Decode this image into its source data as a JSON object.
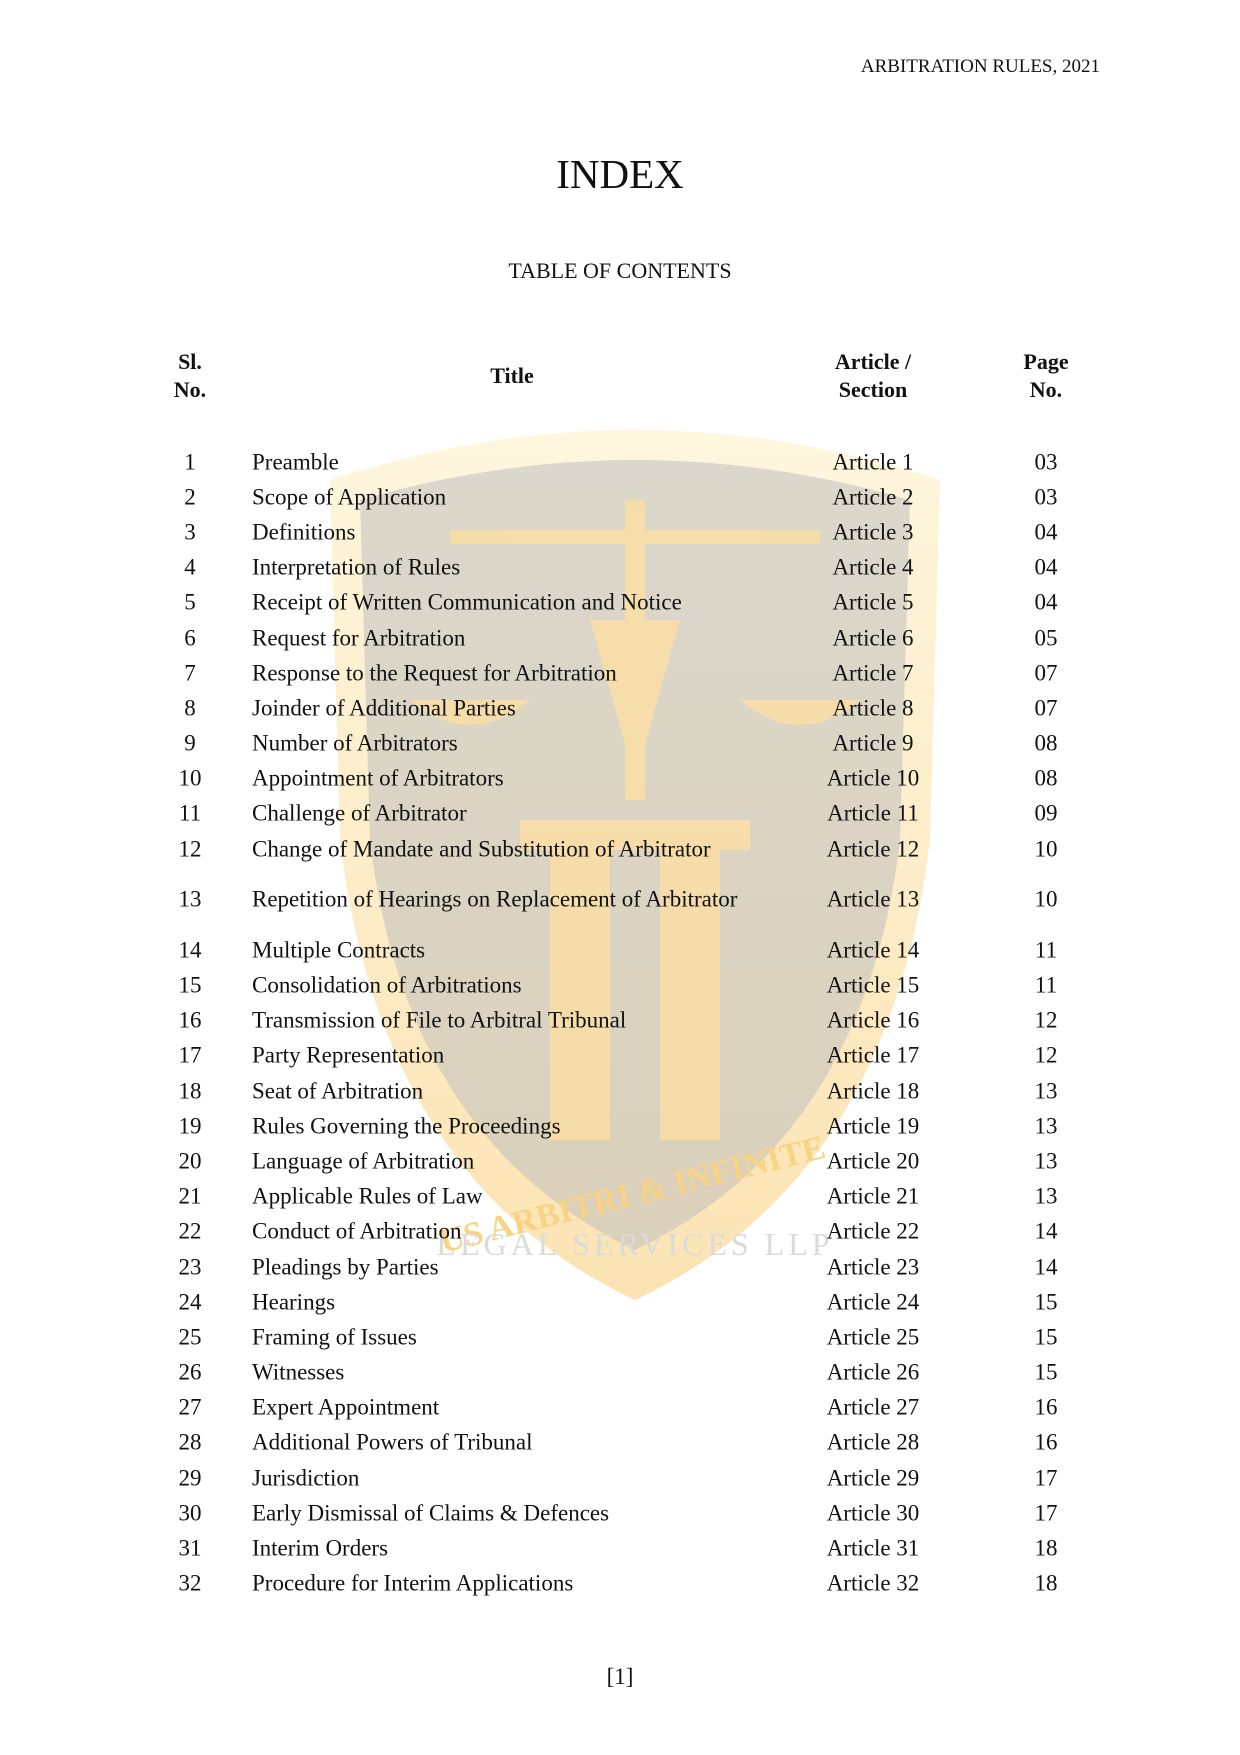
{
  "header": {
    "running_title": "ARBITRATION RULES, 2021"
  },
  "page_title": "INDEX",
  "subtitle": "TABLE OF CONTENTS",
  "columns": {
    "sl_line1": "Sl.",
    "sl_line2": "No.",
    "title": "Title",
    "article_line1": "Article /",
    "article_line2": "Section",
    "page_line1": "Page",
    "page_line2": "No."
  },
  "watermark": {
    "text_top": "US ARBITRI & INFINITE",
    "text_bottom": "LEGAL SERVICES LLP",
    "colors": {
      "shield": "#6b6b6b",
      "gold": "#f2b01e"
    }
  },
  "rows": [
    {
      "no": "1",
      "title": "Preamble",
      "article": "Article 1",
      "page": "03"
    },
    {
      "no": "2",
      "title": "Scope of Application",
      "article": "Article 2",
      "page": "03"
    },
    {
      "no": "3",
      "title": "Definitions",
      "article": "Article 3",
      "page": "04"
    },
    {
      "no": "4",
      "title": "Interpretation of Rules",
      "article": "Article 4",
      "page": "04"
    },
    {
      "no": "5",
      "title": "Receipt of Written Communication and Notice",
      "article": "Article 5",
      "page": "04"
    },
    {
      "no": "6",
      "title": "Request for Arbitration",
      "article": "Article 6",
      "page": "05"
    },
    {
      "no": "7",
      "title": "Response to the Request for Arbitration",
      "article": "Article 7",
      "page": "07"
    },
    {
      "no": "8",
      "title": "Joinder of Additional Parties",
      "article": "Article 8",
      "page": "07"
    },
    {
      "no": "9",
      "title": "Number of Arbitrators",
      "article": "Article 9",
      "page": "08"
    },
    {
      "no": "10",
      "title": "Appointment of Arbitrators",
      "article": "Article 10",
      "page": "08"
    },
    {
      "no": "11",
      "title": "Challenge of Arbitrator",
      "article": "Article 11",
      "page": "09"
    },
    {
      "no": "12",
      "title": "Change of Mandate and Substitution of Arbitrator",
      "article": "Article 12",
      "page": "10"
    },
    {
      "no": "13",
      "title": "Repetition of Hearings on Replacement of Arbitrator",
      "article": "Article 13",
      "page": "10"
    },
    {
      "no": "14",
      "title": "Multiple Contracts",
      "article": "Article 14",
      "page": "11"
    },
    {
      "no": "15",
      "title": "Consolidation of Arbitrations",
      "article": "Article 15",
      "page": "11"
    },
    {
      "no": "16",
      "title": "Transmission of File to Arbitral Tribunal",
      "article": "Article 16",
      "page": "12"
    },
    {
      "no": "17",
      "title": "Party Representation",
      "article": "Article 17",
      "page": "12"
    },
    {
      "no": "18",
      "title": "Seat of Arbitration",
      "article": "Article 18",
      "page": "13"
    },
    {
      "no": "19",
      "title": "Rules Governing the Proceedings",
      "article": "Article 19",
      "page": "13"
    },
    {
      "no": "20",
      "title": "Language of Arbitration",
      "article": "Article 20",
      "page": "13"
    },
    {
      "no": "21",
      "title": "Applicable Rules of Law",
      "article": "Article 21",
      "page": "13"
    },
    {
      "no": "22",
      "title": "Conduct of Arbitration",
      "article": "Article 22",
      "page": "14"
    },
    {
      "no": "23",
      "title": "Pleadings by Parties",
      "article": "Article 23",
      "page": "14"
    },
    {
      "no": "24",
      "title": "Hearings",
      "article": "Article 24",
      "page": "15"
    },
    {
      "no": "25",
      "title": "Framing of Issues",
      "article": "Article 25",
      "page": "15"
    },
    {
      "no": "26",
      "title": "Witnesses",
      "article": "Article 26",
      "page": "15"
    },
    {
      "no": "27",
      "title": "Expert Appointment",
      "article": "Article 27",
      "page": "16"
    },
    {
      "no": "28",
      "title": "Additional Powers of Tribunal",
      "article": "Article 28",
      "page": "16"
    },
    {
      "no": "29",
      "title": "Jurisdiction",
      "article": "Article 29",
      "page": "17"
    },
    {
      "no": "30",
      "title": "Early Dismissal of Claims & Defences",
      "article": "Article 30",
      "page": "17"
    },
    {
      "no": "31",
      "title": "Interim Orders",
      "article": "Article 31",
      "page": "18"
    },
    {
      "no": "32",
      "title": "Procedure for Interim Applications",
      "article": "Article 32",
      "page": "18"
    }
  ],
  "footer": {
    "page_number": "[1]"
  }
}
